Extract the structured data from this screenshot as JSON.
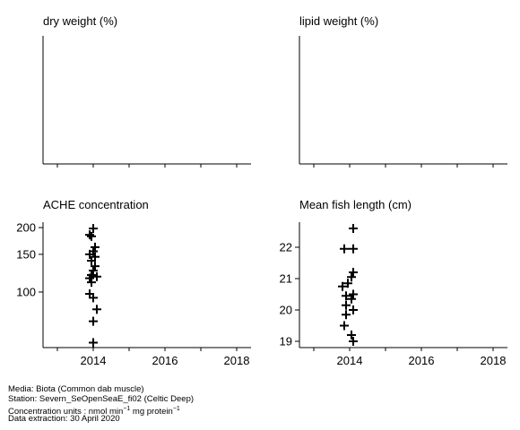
{
  "chart_data": [
    {
      "type": "scatter",
      "title": "dry weight (%)",
      "points": []
    },
    {
      "type": "scatter",
      "title": "lipid weight (%)",
      "points": []
    },
    {
      "type": "scatter",
      "title": "ACHE concentration",
      "scale": "log",
      "xlim": [
        2012.6,
        2018.4
      ],
      "ylim": [
        55,
        212
      ],
      "xticks": [
        2014,
        2016,
        2018
      ],
      "yticks": [
        100,
        150,
        200
      ],
      "points": [
        [
          2014.0,
          198
        ],
        [
          2013.9,
          185
        ],
        [
          2013.95,
          182
        ],
        [
          2014.05,
          162
        ],
        [
          2014.0,
          155
        ],
        [
          2013.9,
          150
        ],
        [
          2014.05,
          146
        ],
        [
          2013.95,
          140
        ],
        [
          2014.05,
          132
        ],
        [
          2014.0,
          126
        ],
        [
          2013.95,
          120
        ],
        [
          2014.1,
          118
        ],
        [
          2013.9,
          116
        ],
        [
          2013.95,
          111
        ],
        [
          2013.9,
          98
        ],
        [
          2014.0,
          94
        ],
        [
          2014.1,
          83
        ],
        [
          2014.0,
          73
        ],
        [
          2014.0,
          58
        ]
      ]
    },
    {
      "type": "scatter",
      "title": "Mean fish length (cm)",
      "xlim": [
        2012.6,
        2018.4
      ],
      "ylim": [
        18.8,
        22.8
      ],
      "xticks": [
        2014,
        2016,
        2018
      ],
      "yticks": [
        19,
        20,
        21,
        22
      ],
      "points": [
        [
          2014.1,
          22.6
        ],
        [
          2013.85,
          21.95
        ],
        [
          2014.1,
          21.95
        ],
        [
          2014.1,
          21.2
        ],
        [
          2014.05,
          21.05
        ],
        [
          2013.95,
          20.85
        ],
        [
          2013.8,
          20.75
        ],
        [
          2014.1,
          20.5
        ],
        [
          2013.9,
          20.45
        ],
        [
          2014.05,
          20.35
        ],
        [
          2013.9,
          20.15
        ],
        [
          2014.1,
          20.0
        ],
        [
          2013.9,
          19.85
        ],
        [
          2013.85,
          19.5
        ],
        [
          2014.05,
          19.2
        ],
        [
          2014.1,
          19.0
        ]
      ]
    }
  ],
  "footer": {
    "media": "Media: Biota (Common dab muscle)",
    "station": "Station: Severn_SeOpenSeaE_fi02 (Celtic Deep)",
    "units_prefix": "Concentration units : nmol min",
    "units_exp1": "−1",
    "units_mid": " mg protein",
    "units_exp2": "−1",
    "extraction": "Data extraction: 30 April 2020"
  }
}
